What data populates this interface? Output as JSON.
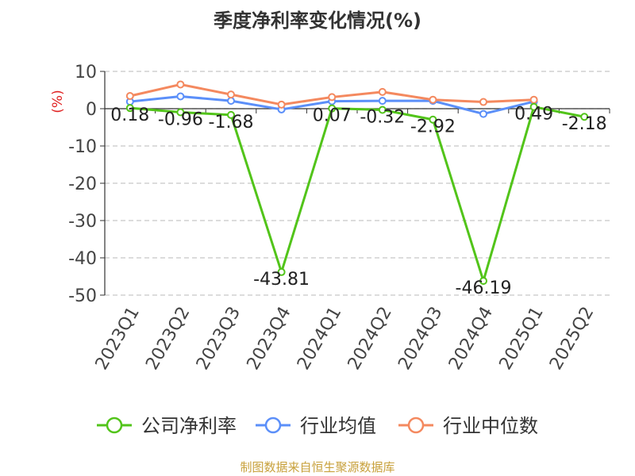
{
  "title": "季度净利率变化情况(%)",
  "source": "制图数据来自恒生聚源数据库",
  "chart_data": {
    "type": "line",
    "title": "季度净利率变化情况(%)",
    "ylabel": "(%)",
    "xlabel": "",
    "ylim": [
      -50,
      10
    ],
    "yticks": [
      10,
      0,
      -10,
      -20,
      -30,
      -40,
      -50
    ],
    "grid": true,
    "legend_position": "bottom",
    "categories": [
      "2023Q1",
      "2023Q2",
      "2023Q3",
      "2023Q4",
      "2024Q1",
      "2024Q2",
      "2024Q3",
      "2024Q4",
      "2025Q1",
      "2025Q2"
    ],
    "series": [
      {
        "name": "公司净利率",
        "color": "#52c41a",
        "values": [
          0.18,
          -0.96,
          -1.68,
          -43.81,
          0.07,
          -0.32,
          -2.92,
          -46.19,
          0.49,
          -2.18
        ],
        "labels": [
          "0.18",
          "-0.96",
          "-1.68",
          "-43.81",
          "0.07",
          "-0.32",
          "-2.92",
          "-46.19",
          "0.49",
          "-2.18"
        ]
      },
      {
        "name": "行业均值",
        "color": "#5b8ff9",
        "values": [
          1.9,
          3.3,
          2.1,
          -0.2,
          2.0,
          2.1,
          2.1,
          -1.4,
          1.9,
          null
        ]
      },
      {
        "name": "行业中位数",
        "color": "#f4895f",
        "values": [
          3.4,
          6.5,
          3.8,
          1.1,
          3.1,
          4.5,
          2.4,
          1.8,
          2.4,
          null
        ]
      }
    ]
  }
}
